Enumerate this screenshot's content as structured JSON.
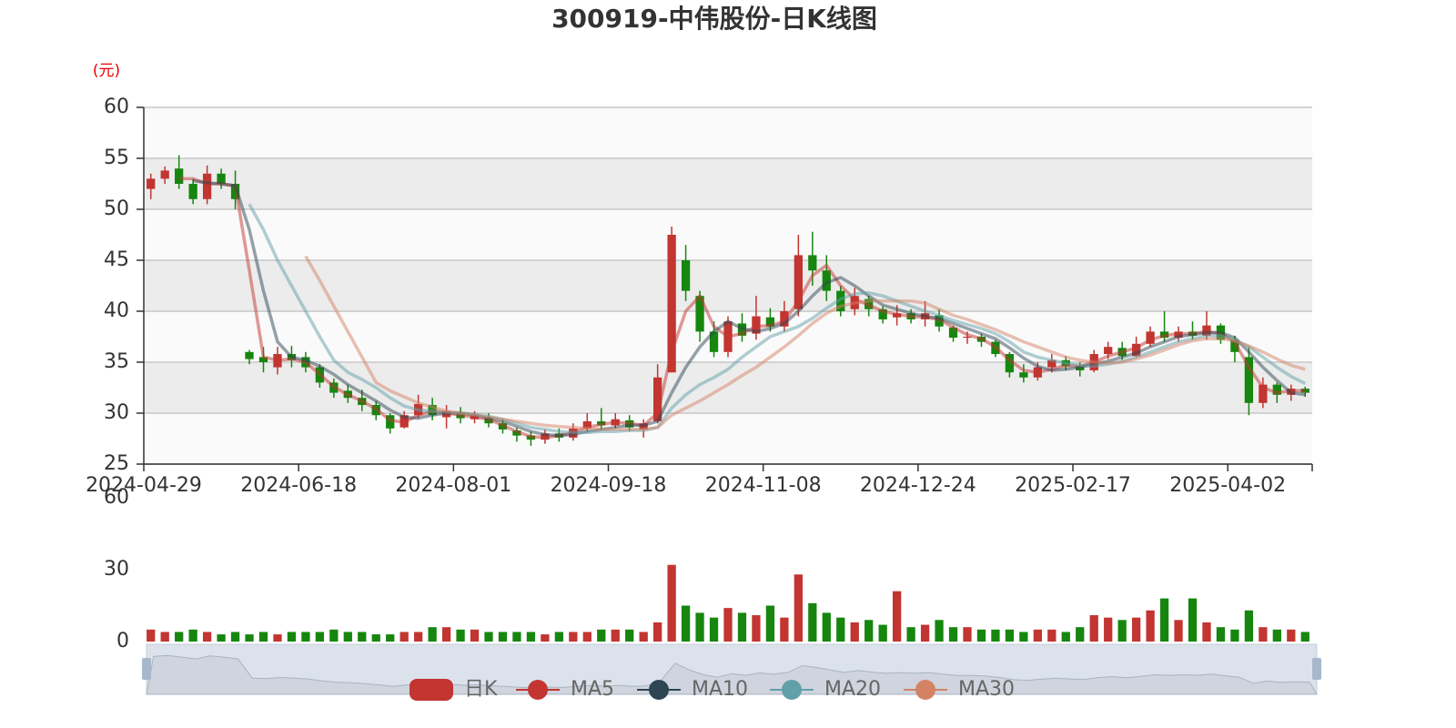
{
  "chart_data": {
    "type": "candlestick",
    "title": "300919-中伟股份-日K线图",
    "y_unit": "(元)",
    "ylim": [
      25,
      60
    ],
    "yticks": [
      25,
      30,
      35,
      40,
      45,
      50,
      55,
      60
    ],
    "grid": true,
    "categories": [
      "2024-04-29",
      null,
      null,
      null,
      null,
      null,
      null,
      null,
      null,
      null,
      null,
      "2024-06-18",
      null,
      null,
      null,
      null,
      null,
      null,
      null,
      null,
      null,
      null,
      "2024-08-01",
      null,
      null,
      null,
      null,
      null,
      null,
      null,
      null,
      null,
      null,
      "2024-09-18",
      null,
      null,
      null,
      null,
      null,
      null,
      null,
      null,
      null,
      null,
      "2024-11-08",
      null,
      null,
      null,
      null,
      null,
      null,
      null,
      null,
      null,
      null,
      "2024-12-24",
      null,
      null,
      null,
      null,
      null,
      null,
      null,
      null,
      null,
      null,
      "2025-02-17",
      null,
      null,
      null,
      null,
      null,
      null,
      null,
      null,
      null,
      null,
      "2025-04-02",
      null,
      null,
      null,
      null,
      null
    ],
    "series": [
      {
        "name": "日K",
        "type": "candlestick",
        "color": "#c23531",
        "down_color": "#16860f",
        "values": [
          [
            52,
            53,
            51,
            53.5
          ],
          [
            53,
            53.8,
            52.5,
            54.2
          ],
          [
            54,
            52.5,
            52,
            55.3
          ],
          [
            52.5,
            51,
            50.5,
            53
          ],
          [
            51,
            53.5,
            50.5,
            54.3
          ],
          [
            53.5,
            52.5,
            52,
            54
          ],
          [
            52.5,
            51,
            50,
            53.8
          ],
          [
            36,
            35.3,
            34.8,
            36.2
          ],
          [
            35.5,
            35,
            34,
            36.5
          ],
          [
            34.5,
            35.8,
            33.8,
            36.5
          ],
          [
            35.8,
            35.2,
            34.5,
            36.6
          ],
          [
            35.5,
            34.5,
            34,
            36
          ],
          [
            34.5,
            33,
            32.5,
            34.8
          ],
          [
            33,
            32,
            31.5,
            33.4
          ],
          [
            32.2,
            31.5,
            31,
            32.8
          ],
          [
            31.5,
            30.8,
            30.2,
            32.3
          ],
          [
            30.8,
            29.8,
            29.3,
            31.2
          ],
          [
            29.8,
            28.5,
            28,
            30
          ],
          [
            28.6,
            29.8,
            28.5,
            30.2
          ],
          [
            29.8,
            30.9,
            29.5,
            31.8
          ],
          [
            30.8,
            29.8,
            29.3,
            31.5
          ],
          [
            29.6,
            30.2,
            28.5,
            30.8
          ],
          [
            30,
            29.5,
            29,
            30.6
          ],
          [
            29.4,
            29.8,
            29,
            30.2
          ],
          [
            29.6,
            29,
            28.6,
            30
          ],
          [
            29,
            28.4,
            28,
            29.4
          ],
          [
            28.3,
            27.8,
            27.2,
            28.6
          ],
          [
            27.8,
            27.4,
            26.8,
            28.2
          ],
          [
            27.4,
            28,
            27,
            28.4
          ],
          [
            28,
            27.6,
            27.2,
            28.5
          ],
          [
            27.6,
            28.5,
            27.3,
            29
          ],
          [
            28.5,
            29.2,
            28.2,
            30
          ],
          [
            29.2,
            28.8,
            28.4,
            30.5
          ],
          [
            28.8,
            29.4,
            28.5,
            30
          ],
          [
            29.3,
            28.6,
            28.2,
            29.8
          ],
          [
            28.4,
            29,
            27.6,
            29.4
          ],
          [
            29.2,
            33.5,
            29,
            34.8
          ],
          [
            34,
            47.5,
            34,
            48.3
          ],
          [
            45,
            42,
            41,
            46.5
          ],
          [
            41.5,
            38,
            37,
            42
          ],
          [
            38,
            36,
            35.5,
            39
          ],
          [
            36,
            39,
            35.5,
            39.5
          ],
          [
            38.8,
            37.6,
            37,
            39.8
          ],
          [
            37.8,
            39.5,
            37.2,
            41.5
          ],
          [
            39.4,
            38.5,
            38,
            40.3
          ],
          [
            38.5,
            40,
            38,
            41
          ],
          [
            40.2,
            45.5,
            39.5,
            47.5
          ],
          [
            45.5,
            44,
            42.5,
            47.8
          ],
          [
            44,
            42,
            41,
            45.5
          ],
          [
            42,
            40,
            39.5,
            42.5
          ],
          [
            40.2,
            41.5,
            39.6,
            42.3
          ],
          [
            41.2,
            40.2,
            39.5,
            41.5
          ],
          [
            40.2,
            39.2,
            38.8,
            40.5
          ],
          [
            39.4,
            39.8,
            38.6,
            40.6
          ],
          [
            39.8,
            39.2,
            38.8,
            40.2
          ],
          [
            39.2,
            39.8,
            38.5,
            41
          ],
          [
            39.6,
            38.5,
            38,
            40.2
          ],
          [
            38.4,
            37.4,
            37,
            38.6
          ],
          [
            37.4,
            37.5,
            36.8,
            38
          ],
          [
            37.5,
            37,
            36.5,
            37.8
          ],
          [
            37,
            35.8,
            35.5,
            37.2
          ],
          [
            35.8,
            34,
            33.5,
            36
          ],
          [
            34,
            33.5,
            33,
            34.8
          ],
          [
            33.5,
            34.5,
            33.2,
            35
          ],
          [
            34.5,
            35.2,
            34,
            35.8
          ],
          [
            35.2,
            34.6,
            34.2,
            35.6
          ],
          [
            34.6,
            34.2,
            33.6,
            35
          ],
          [
            34.2,
            35.8,
            34,
            36.2
          ],
          [
            35.8,
            36.5,
            35.3,
            37
          ],
          [
            36.4,
            35.6,
            35.2,
            37
          ],
          [
            35.6,
            36.8,
            35.5,
            37.5
          ],
          [
            36.8,
            38,
            36.5,
            38.5
          ],
          [
            38,
            37.4,
            37,
            40
          ],
          [
            37.4,
            38,
            37,
            38.5
          ],
          [
            38,
            37.6,
            37.2,
            39
          ],
          [
            37.6,
            38.6,
            37.2,
            40
          ],
          [
            38.6,
            37.2,
            36.8,
            38.8
          ],
          [
            37.2,
            36,
            35,
            37.6
          ],
          [
            35.5,
            31,
            29.8,
            36.5
          ],
          [
            31,
            32.8,
            30.5,
            33.5
          ],
          [
            32.8,
            31.8,
            31,
            33
          ],
          [
            31.8,
            32.4,
            31.2,
            32.8
          ],
          [
            32.4,
            32,
            31.6,
            32.6
          ]
        ]
      },
      {
        "name": "MA5",
        "type": "line",
        "color": "#c23531",
        "values": [
          null,
          null,
          53,
          53,
          52.5,
          52.5,
          52.3,
          44,
          35.5,
          35.2,
          35.3,
          35,
          33.8,
          32.6,
          31.8,
          31.2,
          30.4,
          29.3,
          29.1,
          29.8,
          30.2,
          30,
          29.8,
          29.6,
          29.4,
          28.8,
          28.2,
          27.7,
          27.6,
          27.8,
          28.1,
          28.6,
          28.9,
          29.1,
          29,
          28.8,
          30,
          36,
          40,
          41.5,
          38.5,
          37.5,
          37.8,
          38.5,
          38.6,
          39,
          41,
          43.5,
          44.5,
          42.5,
          41.2,
          40.6,
          40,
          39.7,
          39.5,
          39.4,
          39.2,
          38.4,
          37.7,
          37.3,
          36.5,
          35.2,
          34.2,
          34,
          34.3,
          34.7,
          34.6,
          35,
          35.6,
          36,
          36.4,
          37.2,
          37.6,
          37.8,
          37.8,
          38,
          37.8,
          37,
          34.5,
          32.5,
          32,
          32.2,
          32.2
        ]
      },
      {
        "name": "MA10",
        "type": "line",
        "color": "#2f4554",
        "values": [
          null,
          null,
          null,
          52.8,
          52.6,
          52.5,
          52.3,
          48,
          42,
          37,
          35.5,
          35.2,
          34.6,
          33.8,
          32.8,
          32,
          31.2,
          30.3,
          29.6,
          29.5,
          29.8,
          30,
          30,
          29.8,
          29.5,
          29.2,
          28.7,
          28.2,
          27.9,
          27.8,
          27.9,
          28.2,
          28.4,
          28.6,
          28.8,
          28.8,
          29.2,
          32,
          34.5,
          36.5,
          38,
          39,
          38.3,
          38,
          38.3,
          38.8,
          40,
          41.5,
          42.8,
          43.3,
          42.5,
          41.5,
          40.6,
          40.2,
          39.8,
          39.5,
          39.3,
          38.8,
          38.3,
          37.8,
          37.3,
          36.4,
          35.4,
          34.6,
          34.2,
          34.3,
          34.5,
          34.8,
          35.1,
          35.5,
          35.9,
          36.5,
          37,
          37.5,
          37.7,
          37.9,
          37.9,
          37.4,
          36,
          34.5,
          33.2,
          32,
          31.8
        ]
      },
      {
        "name": "MA20",
        "type": "line",
        "color": "#61a0a8",
        "values": [
          null,
          null,
          null,
          null,
          null,
          null,
          null,
          50.5,
          48,
          45,
          42.5,
          40,
          37.5,
          35.2,
          34,
          33.3,
          32.5,
          31.5,
          30.7,
          30.3,
          30.2,
          30.1,
          30,
          29.9,
          29.7,
          29.4,
          29,
          28.6,
          28.4,
          28.2,
          28.1,
          28.1,
          28.2,
          28.2,
          28.3,
          28.3,
          28.6,
          30.5,
          31.8,
          32.8,
          33.5,
          34.3,
          35.5,
          36.5,
          37.5,
          38,
          38.5,
          39.3,
          40.3,
          41.2,
          41.7,
          41.8,
          41.5,
          41,
          40.5,
          40,
          39.6,
          39.1,
          38.7,
          38.3,
          37.8,
          37,
          36,
          35.5,
          35.2,
          34.9,
          34.7,
          34.6,
          34.8,
          35.1,
          35.5,
          36,
          36.5,
          37,
          37.3,
          37.6,
          37.6,
          37.2,
          36.5,
          35.5,
          34.5,
          33.6,
          32.9
        ]
      },
      {
        "name": "MA30",
        "type": "line",
        "color": "#d48265",
        "values": [
          null,
          null,
          null,
          null,
          null,
          null,
          null,
          null,
          null,
          null,
          null,
          45.4,
          43,
          40.5,
          38,
          35.5,
          33,
          32.2,
          31.6,
          31,
          30.6,
          30.2,
          30,
          29.8,
          29.6,
          29.4,
          29.2,
          29,
          28.8,
          28.7,
          28.6,
          28.5,
          28.4,
          28.4,
          28.4,
          28.4,
          28.6,
          29.8,
          30.5,
          31.2,
          32,
          32.8,
          33.7,
          34.5,
          35.5,
          36.5,
          37.6,
          38.8,
          39.8,
          40.5,
          40.8,
          41,
          41,
          41,
          41,
          40.8,
          40.2,
          39.6,
          39.2,
          38.7,
          38.2,
          37.6,
          37,
          36.5,
          36,
          35.5,
          35.2,
          35,
          34.9,
          35,
          35.3,
          35.7,
          36.2,
          36.7,
          37.1,
          37.3,
          37.3,
          37.1,
          36.6,
          36,
          35.3,
          34.7,
          34.3
        ]
      }
    ],
    "volume": {
      "ylim": [
        0,
        60
      ],
      "yticks": [
        0,
        30,
        60
      ],
      "values": [
        5,
        4,
        4,
        5,
        4,
        3,
        4,
        3,
        4,
        3,
        4,
        4,
        4,
        5,
        4,
        4,
        3,
        3,
        4,
        4,
        6,
        6,
        5,
        5,
        4,
        4,
        4,
        4,
        3,
        4,
        4,
        4,
        5,
        5,
        5,
        4,
        8,
        32,
        15,
        12,
        10,
        14,
        12,
        11,
        15,
        10,
        28,
        16,
        12,
        10,
        8,
        9,
        7,
        21,
        6,
        7,
        9,
        6,
        6,
        5,
        5,
        5,
        4,
        5,
        5,
        4,
        6,
        11,
        10,
        9,
        10,
        13,
        18,
        9,
        18,
        8,
        6,
        5,
        13,
        6,
        5,
        5,
        4
      ]
    }
  }
}
